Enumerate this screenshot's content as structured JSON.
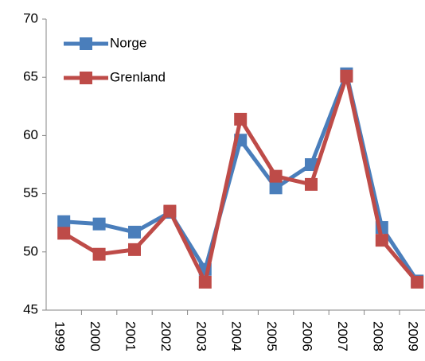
{
  "chart_data": {
    "type": "line",
    "categories": [
      "1999",
      "2000",
      "2001",
      "2002",
      "2003",
      "2004",
      "2005",
      "2006",
      "2007",
      "2008",
      "2009"
    ],
    "series": [
      {
        "name": "Norge",
        "color": "#4a7ebb",
        "values": [
          52.6,
          52.4,
          51.7,
          53.4,
          48.5,
          59.6,
          55.5,
          57.5,
          65.3,
          52.1,
          47.5
        ]
      },
      {
        "name": "Grenland",
        "color": "#be4b48",
        "values": [
          51.6,
          49.8,
          50.2,
          53.5,
          47.4,
          61.4,
          56.5,
          55.8,
          65.1,
          51.0,
          47.4
        ]
      }
    ],
    "ylim": [
      45,
      70
    ],
    "yticks": [
      45,
      50,
      55,
      60,
      65,
      70
    ],
    "legend": "upper-left"
  }
}
